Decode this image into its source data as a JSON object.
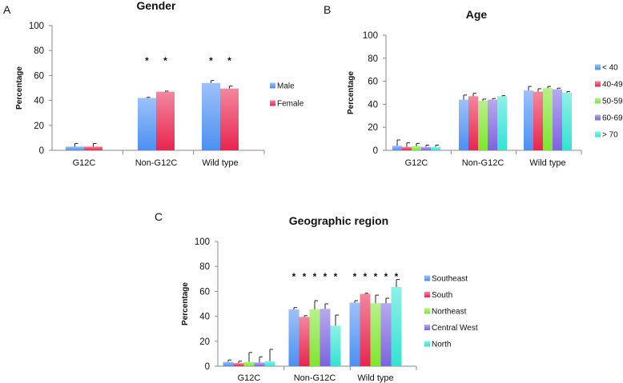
{
  "figure": {
    "panel_letters": [
      "A",
      "B",
      "C"
    ]
  },
  "chart_data": [
    {
      "type": "bar",
      "panel": "A",
      "title": "Gender",
      "ylabel": "Percentage",
      "xlabel": "",
      "ylim": [
        0,
        100
      ],
      "yticks": [
        0,
        20,
        40,
        60,
        80,
        100
      ],
      "categories": [
        "G12C",
        "Non-G12C",
        "Wild type"
      ],
      "series": [
        {
          "name": "Male",
          "color": "#4d8ff2",
          "values": [
            3,
            42,
            54
          ],
          "errors": [
            2.5,
            0.5,
            2
          ]
        },
        {
          "name": "Female",
          "color": "#e8254f",
          "values": [
            3,
            47,
            49.5
          ],
          "errors": [
            2.5,
            0.5,
            2
          ]
        }
      ],
      "significance": [
        {
          "category": "Non-G12C",
          "marks": [
            "*",
            "*"
          ]
        },
        {
          "category": "Wild type",
          "marks": [
            "*",
            "*"
          ]
        }
      ],
      "legend": "right"
    },
    {
      "type": "bar",
      "panel": "B",
      "title": "Age",
      "ylabel": "Percentage",
      "xlabel": "",
      "ylim": [
        0,
        100
      ],
      "yticks": [
        0,
        20,
        40,
        60,
        80,
        100
      ],
      "categories": [
        "G12C",
        "Non-G12C",
        "Wild type"
      ],
      "series": [
        {
          "name": "< 40",
          "color": "#4d8ff2",
          "values": [
            4,
            44,
            52
          ],
          "errors": [
            5,
            4,
            3.5
          ]
        },
        {
          "name": "40-49",
          "color": "#e8254f",
          "values": [
            3,
            47,
            51
          ],
          "errors": [
            3.5,
            2.5,
            2.5
          ]
        },
        {
          "name": "50-59",
          "color": "#7ee62e",
          "values": [
            3.5,
            43,
            54
          ],
          "errors": [
            2.5,
            1.5,
            1.5
          ]
        },
        {
          "name": "60-69",
          "color": "#7d63e0",
          "values": [
            3,
            44,
            53
          ],
          "errors": [
            1.5,
            1,
            1
          ]
        },
        {
          "name": "> 70",
          "color": "#33e3d3",
          "values": [
            3,
            47,
            50
          ],
          "errors": [
            1.5,
            0.5,
            1
          ]
        }
      ],
      "legend": "right"
    },
    {
      "type": "bar",
      "panel": "C",
      "title": "Geographic region",
      "ylabel": "Percentage",
      "xlabel": "",
      "ylim": [
        0,
        100
      ],
      "yticks": [
        0,
        20,
        40,
        60,
        80,
        100
      ],
      "categories": [
        "G12C",
        "Non-G12C",
        "Wild type"
      ],
      "series": [
        {
          "name": "Southeast",
          "color": "#4d8ff2",
          "values": [
            3.5,
            45.5,
            51
          ],
          "errors": [
            1.5,
            1.5,
            1.5
          ]
        },
        {
          "name": "South",
          "color": "#e8254f",
          "values": [
            2.5,
            39.5,
            58
          ],
          "errors": [
            1.5,
            1,
            0.5
          ]
        },
        {
          "name": "Northeast",
          "color": "#7ee62e",
          "values": [
            3.5,
            45.5,
            50.5
          ],
          "errors": [
            7.5,
            7,
            6.5
          ]
        },
        {
          "name": "Central West",
          "color": "#7d63e0",
          "values": [
            3,
            46,
            50.5
          ],
          "errors": [
            4.5,
            4,
            4
          ]
        },
        {
          "name": "North",
          "color": "#33e3d3",
          "values": [
            4,
            32.5,
            63.5
          ],
          "errors": [
            9.5,
            8.5,
            6
          ]
        }
      ],
      "significance": [
        {
          "category": "Non-G12C",
          "marks": [
            "*",
            "*",
            "*",
            "*",
            "*"
          ]
        },
        {
          "category": "Wild type",
          "marks": [
            "*",
            "*",
            "*",
            "*",
            "*"
          ]
        }
      ],
      "legend": "right"
    }
  ]
}
